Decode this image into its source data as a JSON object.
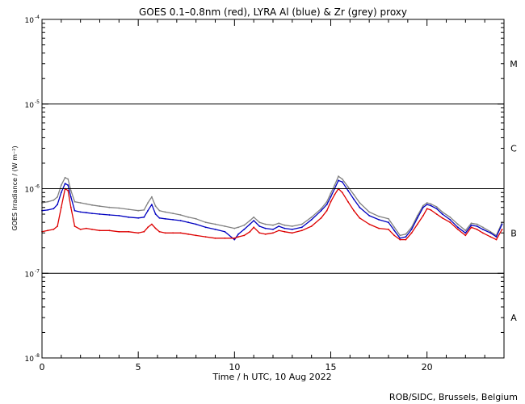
{
  "chart_data": {
    "type": "line",
    "title": "GOES 0.1–0.8nm (red), LYRA Al (blue) & Zr (grey) proxy",
    "xlabel": "Time / h UTC, 10 Aug 2022",
    "ylabel": "GOES Irradiance / (W m⁻²)",
    "footer": "ROB/SIDC, Brussels, Belgium",
    "x_range": [
      0,
      24
    ],
    "x_ticks": [
      0,
      5,
      10,
      15,
      20
    ],
    "x_tick_labels": [
      "0",
      "5",
      "10",
      "15",
      "20"
    ],
    "y_scale": "log",
    "y_range": [
      1e-08,
      0.0001
    ],
    "y_tick_values": [
      0.0001,
      1e-05,
      1e-06,
      1e-07,
      1e-08
    ],
    "y_tick_base": "10",
    "y_tick_exponents": [
      "-4",
      "-5",
      "-6",
      "-7",
      "-8"
    ],
    "class_lines": [
      1e-05,
      1e-06,
      1e-07
    ],
    "flare_classes": [
      {
        "label": "M",
        "center": 3e-05
      },
      {
        "label": "C",
        "center": 3e-06
      },
      {
        "label": "B",
        "center": 3e-07
      },
      {
        "label": "A",
        "center": 3e-08
      }
    ],
    "colors": {
      "goes": "#dd0000",
      "lyra_al": "#0000c0",
      "lyra_zr": "#808080",
      "axes": "#000000"
    },
    "series": [
      {
        "name": "GOES 0.1-0.8nm",
        "color": "#dd0000",
        "x": [
          0.0,
          0.3,
          0.6,
          0.8,
          1.0,
          1.2,
          1.35,
          1.5,
          1.7,
          2.0,
          2.3,
          2.6,
          3.0,
          3.5,
          4.0,
          4.5,
          5.0,
          5.3,
          5.5,
          5.7,
          5.9,
          6.1,
          6.4,
          6.8,
          7.2,
          7.6,
          8.0,
          8.5,
          9.0,
          9.5,
          10.0,
          10.2,
          10.5,
          10.8,
          11.0,
          11.3,
          11.6,
          12.0,
          12.3,
          12.6,
          13.0,
          13.5,
          14.0,
          14.5,
          14.8,
          15.0,
          15.2,
          15.4,
          15.6,
          15.9,
          16.2,
          16.5,
          17.0,
          17.5,
          18.0,
          18.3,
          18.6,
          18.9,
          19.2,
          19.5,
          19.8,
          20.0,
          20.2,
          20.5,
          20.8,
          21.2,
          21.6,
          22.0,
          22.3,
          22.6,
          22.9,
          23.3,
          23.6,
          23.9
        ],
        "y": [
          3.1e-07,
          3.2e-07,
          3.3e-07,
          3.6e-07,
          6e-07,
          1e-06,
          9.5e-07,
          6e-07,
          3.6e-07,
          3.3e-07,
          3.4e-07,
          3.3e-07,
          3.2e-07,
          3.2e-07,
          3.1e-07,
          3.1e-07,
          3e-07,
          3.1e-07,
          3.5e-07,
          3.8e-07,
          3.4e-07,
          3.1e-07,
          3e-07,
          3e-07,
          3e-07,
          2.9e-07,
          2.8e-07,
          2.7e-07,
          2.6e-07,
          2.6e-07,
          2.6e-07,
          2.7e-07,
          2.8e-07,
          3.1e-07,
          3.5e-07,
          3e-07,
          2.9e-07,
          3e-07,
          3.2e-07,
          3.1e-07,
          3e-07,
          3.2e-07,
          3.6e-07,
          4.5e-07,
          5.5e-07,
          7e-07,
          8.5e-07,
          1e-06,
          9e-07,
          7e-07,
          5.5e-07,
          4.5e-07,
          3.8e-07,
          3.4e-07,
          3.3e-07,
          2.8e-07,
          2.5e-07,
          2.5e-07,
          3e-07,
          3.8e-07,
          4.8e-07,
          5.8e-07,
          5.6e-07,
          5e-07,
          4.5e-07,
          4e-07,
          3.3e-07,
          2.8e-07,
          3.5e-07,
          3.3e-07,
          3e-07,
          2.7e-07,
          2.5e-07,
          3.3e-07
        ]
      },
      {
        "name": "LYRA Al proxy",
        "color": "#0000c0",
        "x": [
          0.0,
          0.3,
          0.6,
          0.8,
          1.0,
          1.2,
          1.35,
          1.5,
          1.7,
          2.0,
          2.3,
          2.6,
          3.0,
          3.5,
          4.0,
          4.5,
          5.0,
          5.3,
          5.5,
          5.7,
          5.9,
          6.1,
          6.4,
          6.8,
          7.2,
          7.6,
          8.0,
          8.5,
          9.0,
          9.5,
          10.0,
          10.2,
          10.5,
          10.8,
          11.0,
          11.3,
          11.6,
          12.0,
          12.3,
          12.6,
          13.0,
          13.5,
          14.0,
          14.5,
          14.8,
          15.0,
          15.2,
          15.4,
          15.6,
          15.9,
          16.2,
          16.5,
          17.0,
          17.5,
          18.0,
          18.3,
          18.6,
          18.9,
          19.2,
          19.5,
          19.8,
          20.0,
          20.2,
          20.5,
          20.8,
          21.2,
          21.6,
          22.0,
          22.3,
          22.6,
          22.9,
          23.3,
          23.6,
          23.9
        ],
        "y": [
          5.5e-07,
          5.6e-07,
          5.8e-07,
          6.5e-07,
          9e-07,
          1.15e-06,
          1.1e-06,
          8e-07,
          5.5e-07,
          5.3e-07,
          5.2e-07,
          5.1e-07,
          5e-07,
          4.9e-07,
          4.8e-07,
          4.6e-07,
          4.5e-07,
          4.6e-07,
          5.5e-07,
          6.5e-07,
          5e-07,
          4.5e-07,
          4.4e-07,
          4.3e-07,
          4.2e-07,
          4e-07,
          3.8e-07,
          3.5e-07,
          3.3e-07,
          3.1e-07,
          2.5e-07,
          2.9e-07,
          3.3e-07,
          3.8e-07,
          4.2e-07,
          3.6e-07,
          3.4e-07,
          3.3e-07,
          3.6e-07,
          3.4e-07,
          3.3e-07,
          3.5e-07,
          4.3e-07,
          5.5e-07,
          6.5e-07,
          8e-07,
          1e-06,
          1.25e-06,
          1.2e-06,
          9.5e-07,
          7.5e-07,
          6e-07,
          4.8e-07,
          4.3e-07,
          4e-07,
          3.2e-07,
          2.6e-07,
          2.7e-07,
          3.3e-07,
          4.5e-07,
          6e-07,
          6.5e-07,
          6.3e-07,
          5.8e-07,
          5e-07,
          4.3e-07,
          3.5e-07,
          3e-07,
          3.7e-07,
          3.6e-07,
          3.3e-07,
          3e-07,
          2.7e-07,
          3.8e-07
        ]
      },
      {
        "name": "LYRA Zr proxy",
        "color": "#808080",
        "x": [
          0.0,
          0.3,
          0.6,
          0.8,
          1.0,
          1.2,
          1.35,
          1.5,
          1.7,
          2.0,
          2.3,
          2.6,
          3.0,
          3.5,
          4.0,
          4.5,
          5.0,
          5.3,
          5.5,
          5.7,
          5.9,
          6.1,
          6.4,
          6.8,
          7.2,
          7.6,
          8.0,
          8.5,
          9.0,
          9.5,
          10.0,
          10.2,
          10.5,
          10.8,
          11.0,
          11.3,
          11.6,
          12.0,
          12.3,
          12.6,
          13.0,
          13.5,
          14.0,
          14.5,
          14.8,
          15.0,
          15.2,
          15.4,
          15.6,
          15.9,
          16.2,
          16.5,
          17.0,
          17.5,
          18.0,
          18.3,
          18.6,
          18.9,
          19.2,
          19.5,
          19.8,
          20.0,
          20.2,
          20.5,
          20.8,
          21.2,
          21.6,
          22.0,
          22.3,
          22.6,
          22.9,
          23.3,
          23.6,
          23.9
        ],
        "y": [
          6.8e-07,
          7e-07,
          7.3e-07,
          8e-07,
          1.1e-06,
          1.35e-06,
          1.3e-06,
          9.5e-07,
          7e-07,
          6.8e-07,
          6.6e-07,
          6.4e-07,
          6.2e-07,
          6e-07,
          5.9e-07,
          5.7e-07,
          5.5e-07,
          5.6e-07,
          6.8e-07,
          8e-07,
          6.2e-07,
          5.5e-07,
          5.3e-07,
          5.1e-07,
          4.9e-07,
          4.6e-07,
          4.4e-07,
          4e-07,
          3.8e-07,
          3.6e-07,
          3.4e-07,
          3.5e-07,
          3.7e-07,
          4.2e-07,
          4.6e-07,
          4e-07,
          3.8e-07,
          3.7e-07,
          3.9e-07,
          3.7e-07,
          3.6e-07,
          3.8e-07,
          4.6e-07,
          5.8e-07,
          7e-07,
          8.8e-07,
          1.1e-06,
          1.4e-06,
          1.3e-06,
          1.05e-06,
          8.5e-07,
          6.8e-07,
          5.3e-07,
          4.7e-07,
          4.4e-07,
          3.5e-07,
          2.8e-07,
          2.9e-07,
          3.5e-07,
          4.8e-07,
          6.3e-07,
          6.8e-07,
          6.6e-07,
          6.1e-07,
          5.3e-07,
          4.6e-07,
          3.8e-07,
          3.2e-07,
          3.9e-07,
          3.8e-07,
          3.5e-07,
          3.1e-07,
          2.8e-07,
          4e-07
        ]
      }
    ]
  }
}
